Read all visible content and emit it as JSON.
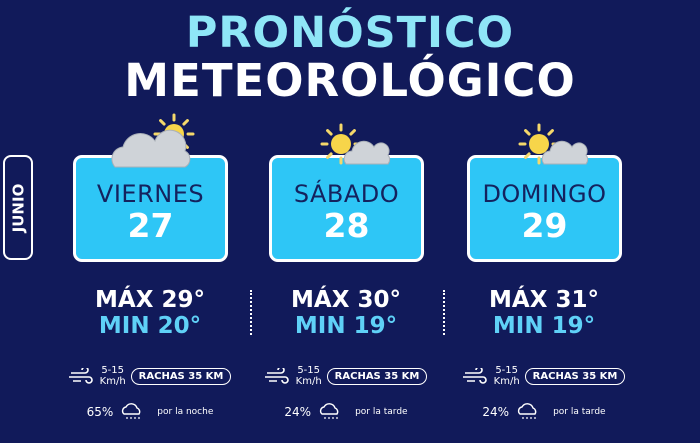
{
  "title": {
    "line1": "PRONÓSTICO",
    "line2": "METEOROLÓGICO"
  },
  "month": "JUNIO",
  "colors": {
    "background": "#111a5a",
    "card": "#2ec6f6",
    "min": "#5fd1f7",
    "title_line1": "#8fe6f7"
  },
  "days": [
    {
      "name": "VIERNES",
      "date": "27",
      "icon": "cloud-sun-icon",
      "max": "MÁX 29°",
      "min": "MIN 20°",
      "wind_speed": "5-15",
      "wind_unit": "Km/h",
      "gusts": "RACHAS 35 KM",
      "rain_pct": "65%",
      "rain_when": "por la noche"
    },
    {
      "name": "SÁBADO",
      "date": "28",
      "icon": "sun-cloud-icon",
      "max": "MÁX 30°",
      "min": "MIN 19°",
      "wind_speed": "5-15",
      "wind_unit": "Km/h",
      "gusts": "RACHAS 35 KM",
      "rain_pct": "24%",
      "rain_when": "por la tarde"
    },
    {
      "name": "DOMINGO",
      "date": "29",
      "icon": "sun-cloud-icon",
      "max": "MÁX 31°",
      "min": "MIN 19°",
      "wind_speed": "5-15",
      "wind_unit": "Km/h",
      "gusts": "RACHAS 35 KM",
      "rain_pct": "24%",
      "rain_when": "por la tarde"
    }
  ]
}
